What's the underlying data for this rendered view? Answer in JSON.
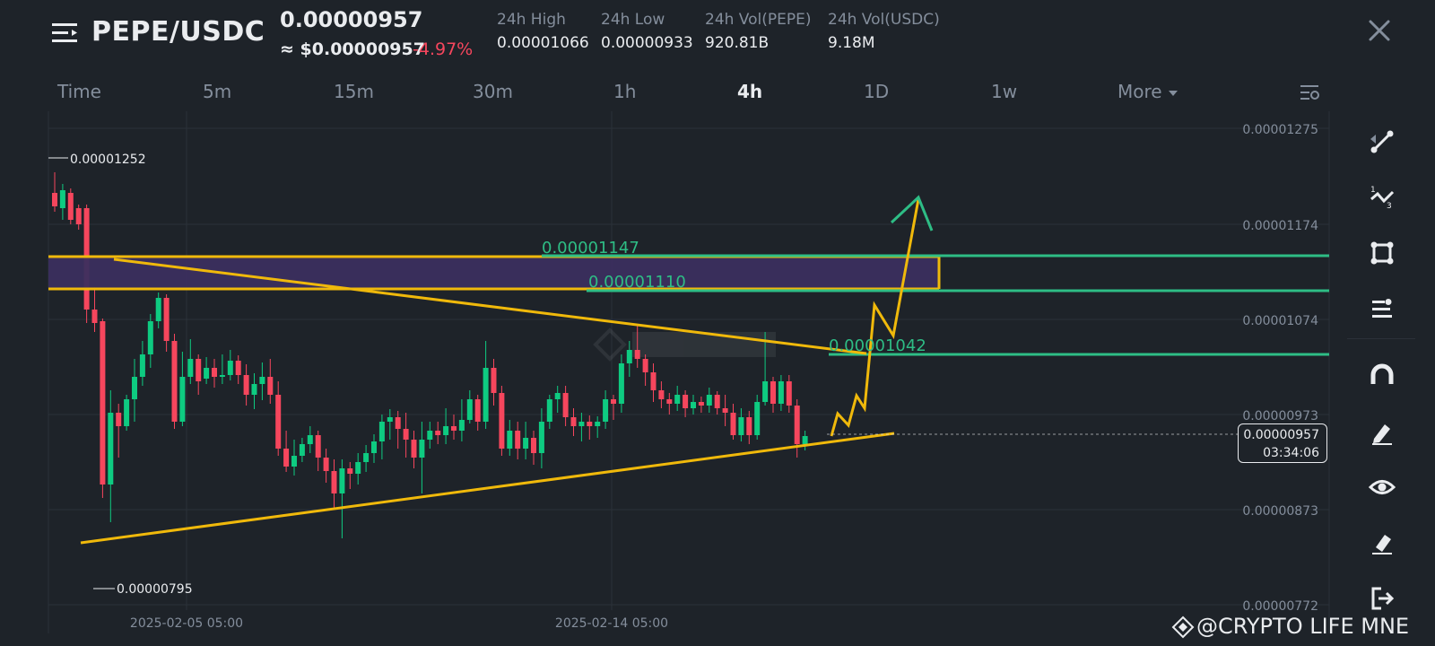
{
  "header": {
    "pair": "PEPE/USDC",
    "last_price": "0.00000957",
    "usd_price": "≈ $0.00000957",
    "change": "-4.97%",
    "stats": [
      {
        "label": "24h High",
        "value": "0.00001066"
      },
      {
        "label": "24h Low",
        "value": "0.00000933"
      },
      {
        "label": "24h Vol(PEPE)",
        "value": "920.81B"
      },
      {
        "label": "24h Vol(USDC)",
        "value": "9.18M"
      }
    ]
  },
  "tabs": {
    "items": [
      "Time",
      "5m",
      "15m",
      "30m",
      "1h",
      "4h",
      "1D",
      "1w"
    ],
    "active": "4h",
    "more": "More"
  },
  "colors": {
    "up": "#0ecb81",
    "down": "#f6465d",
    "trend_line": "#f0b90b",
    "level_line": "#2ebd85",
    "zone_fill": "#3b2f5e",
    "background": "#1e2329"
  },
  "chart_data": {
    "type": "candlestick",
    "y_axis_ticks": [
      "0.00001275",
      "0.00001174",
      "0.00001074",
      "0.00000973",
      "0.00000873",
      "0.00000772"
    ],
    "x_axis_ticks": [
      "2025-02-05 05:00",
      "2025-02-14 05:00"
    ],
    "annotations": {
      "period_high": "0.00001252",
      "period_low": "0.00000795",
      "level_1147": "0.00001147",
      "level_1110": "0.00001110",
      "level_1042": "0.00001042"
    },
    "current_price": "0.00000957",
    "countdown": "03:34:06"
  },
  "toolbar": {
    "icons": [
      "trend-line-icon",
      "fib-icon",
      "shape-icon",
      "level-icon",
      "magnet-icon",
      "pencil-icon",
      "eye-icon",
      "eraser-icon",
      "exit-icon"
    ]
  },
  "watermark": {
    "credit": "@CRYPTO LIFE MNE"
  }
}
